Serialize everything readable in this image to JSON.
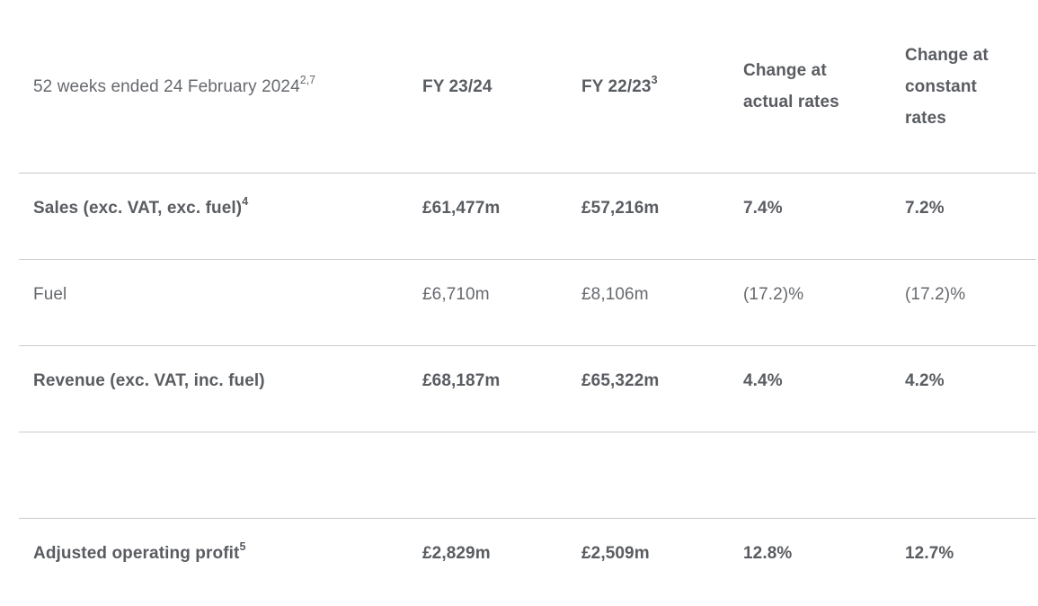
{
  "table": {
    "title_semantic": "Group financial results summary table",
    "colors": {
      "background": "#ffffff",
      "text_regular": "#66696e",
      "text_bold": "#595c61",
      "divider": "#cbcbcb"
    },
    "header": {
      "period_label": "52 weeks ended 24 February 2024",
      "period_superscript": "2,7",
      "fy_current_label": "FY 23/24",
      "fy_prior_label": "FY 22/23",
      "fy_prior_superscript": "3",
      "change_actual_label": "Change at actual rates",
      "change_constant_label": "Change at constant rates"
    },
    "rows": [
      {
        "label": "Sales (exc. VAT, exc. fuel)",
        "superscript": "4",
        "fy_current": "£61,477m",
        "fy_prior": "£57,216m",
        "change_actual": "7.4%",
        "change_constant": "7.2%",
        "emphasis": "bold"
      },
      {
        "label": "Fuel",
        "superscript": "",
        "fy_current": "£6,710m",
        "fy_prior": "£8,106m",
        "change_actual": "(17.2)%",
        "change_constant": "(17.2)%",
        "emphasis": "regular"
      },
      {
        "label": "Revenue (exc. VAT, inc. fuel)",
        "superscript": "",
        "fy_current": "£68,187m",
        "fy_prior": "£65,322m",
        "change_actual": "4.4%",
        "change_constant": "4.2%",
        "emphasis": "bold"
      },
      {
        "label": "",
        "superscript": "",
        "fy_current": "",
        "fy_prior": "",
        "change_actual": "",
        "change_constant": "",
        "emphasis": "regular"
      },
      {
        "label": "Adjusted operating profit",
        "superscript": "5",
        "fy_current": "£2,829m",
        "fy_prior": "£2,509m",
        "change_actual": "12.8%",
        "change_constant": "12.7%",
        "emphasis": "bold"
      }
    ]
  }
}
